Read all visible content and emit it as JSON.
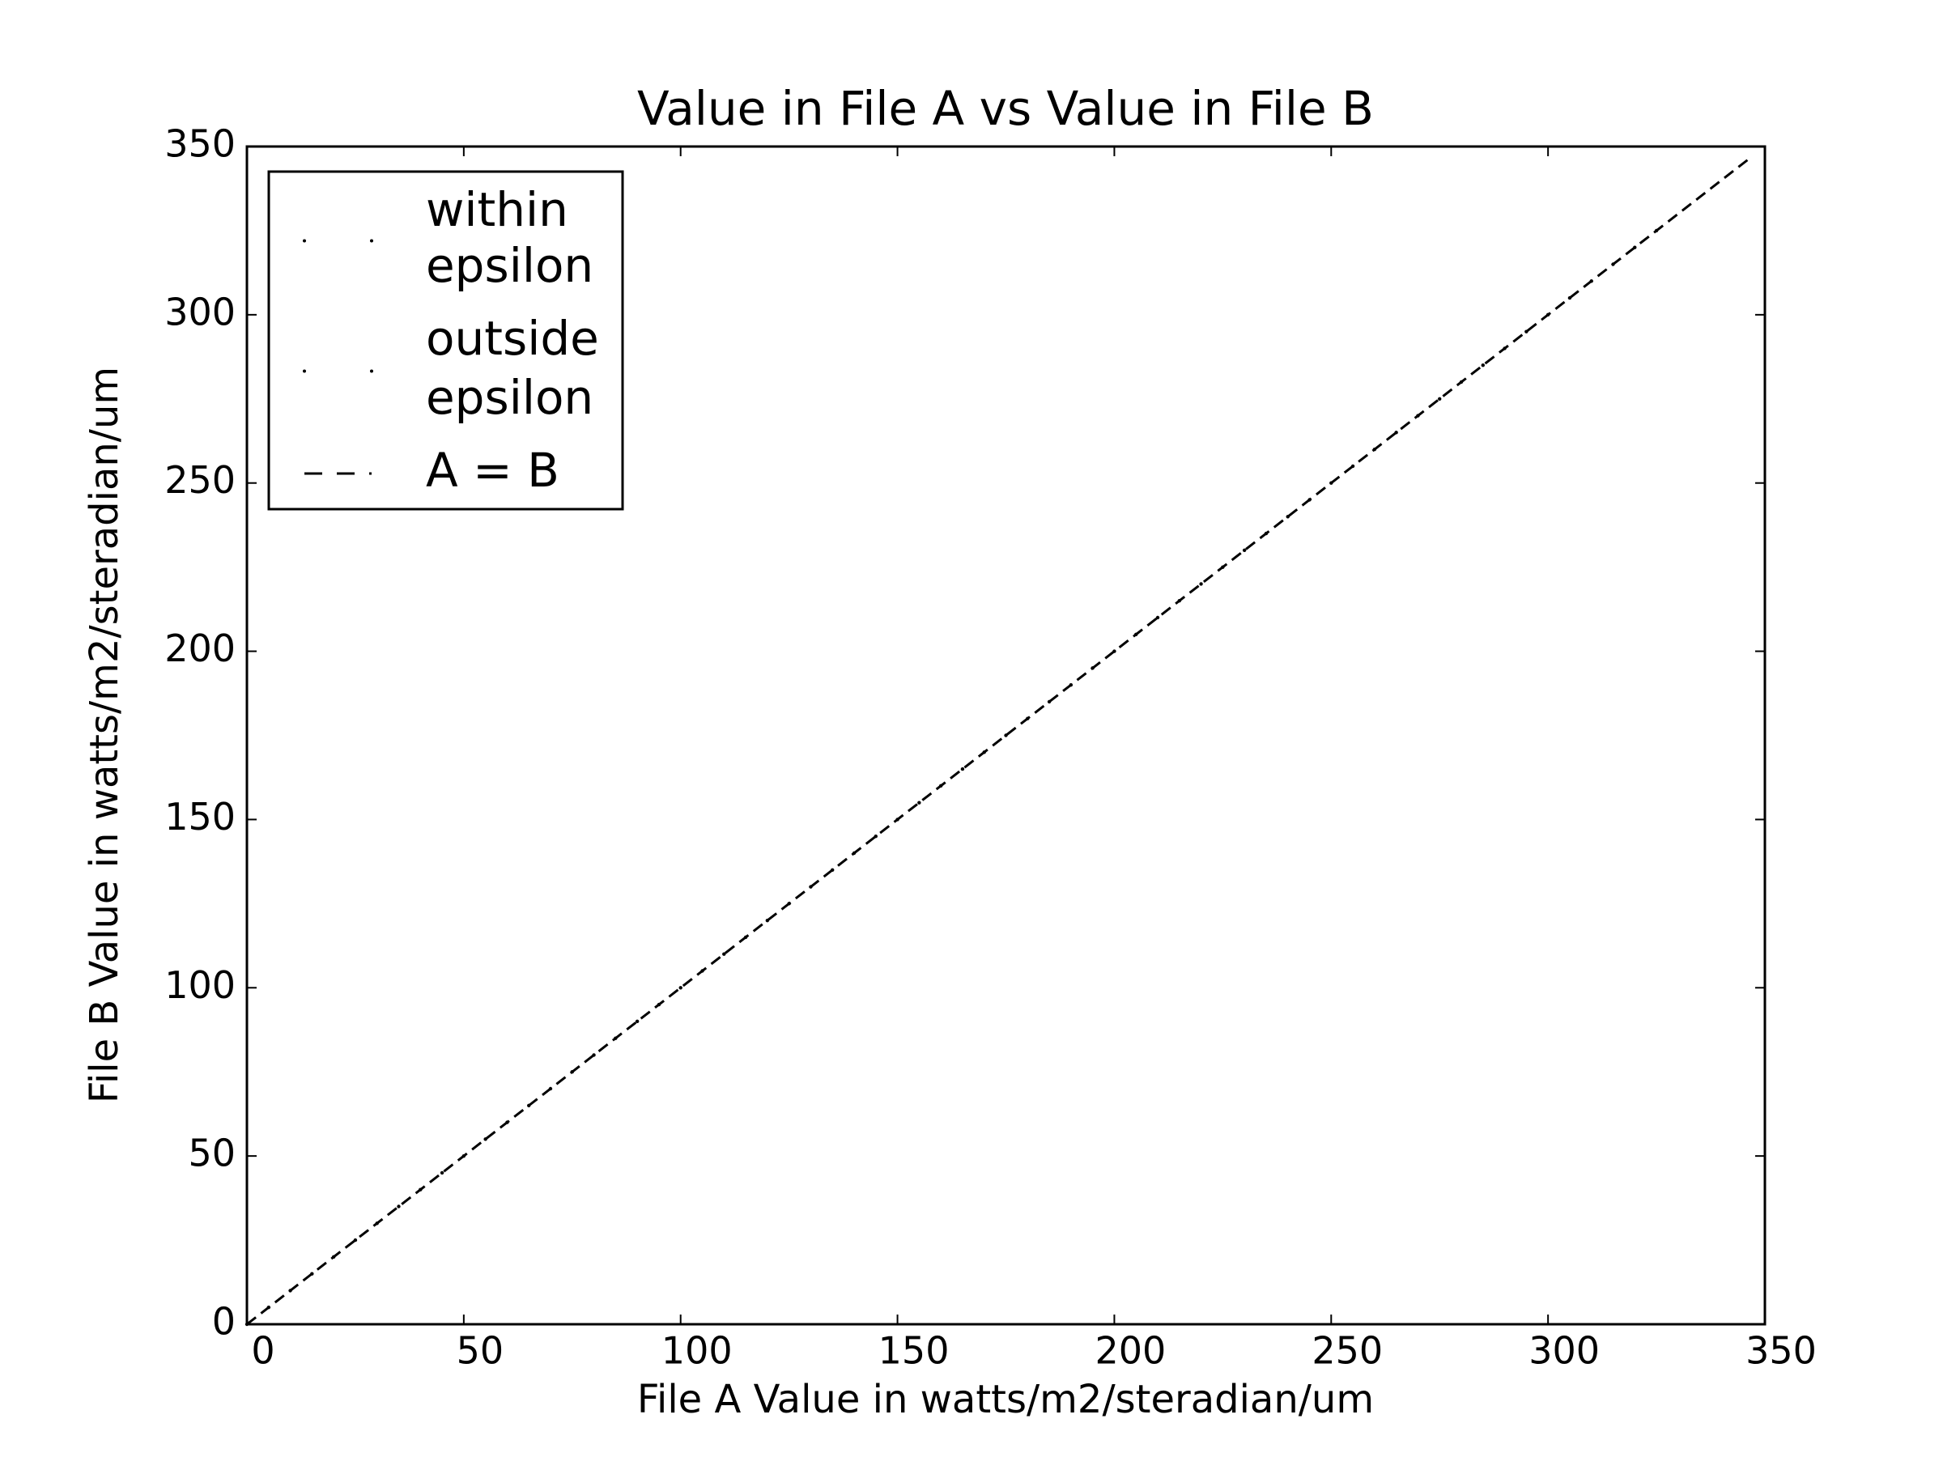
{
  "chart_data": {
    "type": "scatter",
    "title": "Value in File A vs Value in File B",
    "xlabel": "File A Value in watts/m2/steradian/um",
    "ylabel": "File B Value in watts/m2/steradian/um",
    "xlim": [
      0,
      350
    ],
    "ylim": [
      0,
      350
    ],
    "xticks": [
      0,
      50,
      100,
      150,
      200,
      250,
      300,
      350
    ],
    "yticks": [
      0,
      50,
      100,
      150,
      200,
      250,
      300,
      350
    ],
    "legend": "upper left",
    "series": [
      {
        "name": "within epsilon",
        "color": "#000000",
        "x": [
          0,
          5,
          10,
          15,
          20,
          25,
          30,
          35,
          40,
          45,
          50,
          55,
          60,
          65,
          70,
          75,
          80,
          85,
          90,
          95,
          100,
          105,
          110,
          115,
          120,
          125,
          130,
          135,
          140,
          145,
          150,
          155,
          160,
          165,
          170,
          175,
          180,
          185,
          190,
          195,
          200,
          205,
          210,
          215,
          220,
          225,
          230,
          235,
          240,
          245,
          250,
          255,
          260,
          265,
          270,
          275,
          280,
          285,
          290,
          295,
          300,
          305,
          310,
          315,
          320,
          325
        ],
        "y": [
          0,
          5,
          10,
          15,
          20,
          25,
          30,
          35,
          40,
          45,
          50,
          55,
          60,
          65,
          70,
          75,
          80,
          85,
          90,
          95,
          100,
          105,
          110,
          115,
          120,
          125,
          130,
          135,
          140,
          145,
          150,
          155,
          160,
          165,
          170,
          175,
          180,
          185,
          190,
          195,
          200,
          205,
          210,
          215,
          220,
          225,
          230,
          235,
          240,
          245,
          250,
          255,
          260,
          265,
          270,
          275,
          280,
          285,
          290,
          295,
          300,
          305,
          310,
          315,
          320,
          325
        ]
      },
      {
        "name": "outside epsilon",
        "color": "#000000",
        "x": [],
        "y": []
      },
      {
        "name": "A = B",
        "type": "line",
        "color": "#000000",
        "dashed": true,
        "x": [
          0,
          347
        ],
        "y": [
          0,
          347
        ]
      }
    ]
  }
}
